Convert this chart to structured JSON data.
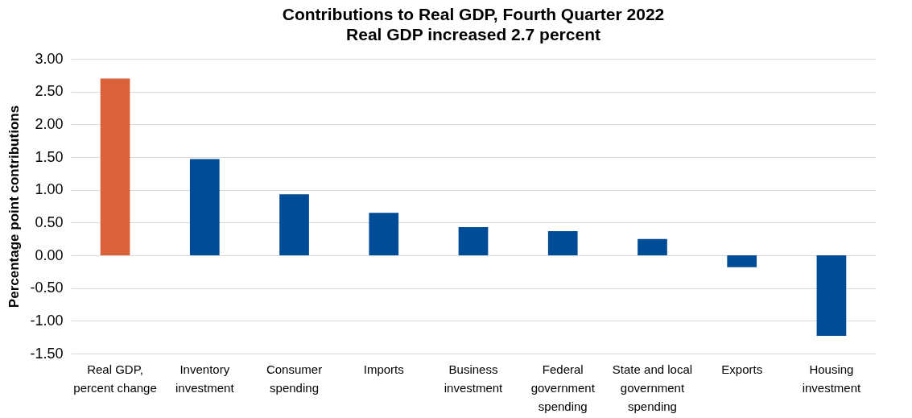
{
  "chart_data": {
    "type": "bar",
    "title": "Contributions to Real GDP, Fourth Quarter 2022",
    "subtitle": "Real GDP increased 2.7 percent",
    "ylabel": "Percentage point contributions",
    "categories": [
      "Real GDP, percent change",
      "Inventory investment",
      "Consumer spending",
      "Imports",
      "Business investment",
      "Federal government spending",
      "State and local government spending",
      "Exports",
      "Housing investment"
    ],
    "values": [
      2.7,
      1.47,
      0.93,
      0.65,
      0.43,
      0.37,
      0.25,
      -0.18,
      -1.23
    ],
    "colors": [
      "#d9623b",
      "#004c97",
      "#004c97",
      "#004c97",
      "#004c97",
      "#004c97",
      "#004c97",
      "#004c97",
      "#004c97"
    ],
    "ylim": [
      -1.5,
      3.0
    ],
    "yticks": [
      {
        "value": -1.5,
        "label": "-1.50"
      },
      {
        "value": -1.0,
        "label": "-1.00"
      },
      {
        "value": -0.5,
        "label": "-0.50"
      },
      {
        "value": 0,
        "label": "0.00"
      },
      {
        "value": 0.5,
        "label": "0.50"
      },
      {
        "value": 1.0,
        "label": "1.00"
      },
      {
        "value": 1.5,
        "label": "1.50"
      },
      {
        "value": 2.0,
        "label": "2.00"
      },
      {
        "value": 2.5,
        "label": "2.50"
      },
      {
        "value": 3.0,
        "label": "3.00"
      }
    ],
    "grid": "y",
    "legend": false
  }
}
